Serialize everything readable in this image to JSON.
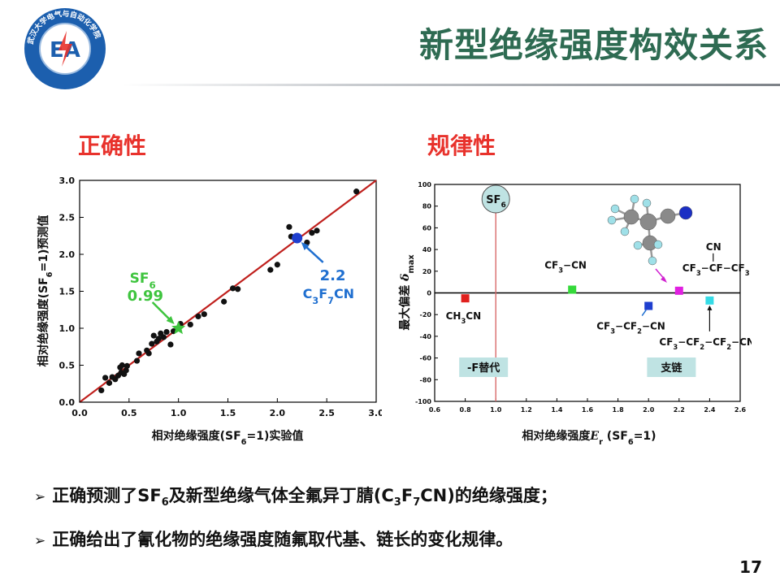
{
  "title": "新型绝缘强度构效关系",
  "logo": {
    "ring_text": "武汉大学电气与自动化学院",
    "letters": "EA",
    "colors": {
      "ring": "#1c5fae",
      "inner": "#ffffff",
      "bolt": "#e8322c"
    }
  },
  "sections": {
    "left": "正确性",
    "right": "规律性"
  },
  "chart_data": [
    {
      "type": "scatter",
      "xlabel": "相对绝缘强度(SF6=1)实验值",
      "ylabel": "相对绝缘强度(SF6=1)预测值",
      "xlim": [
        0,
        3.0
      ],
      "ylim": [
        0,
        3.0
      ],
      "x_ticks": [
        "0.0",
        "0.5",
        "1.0",
        "1.5",
        "2.0",
        "2.5",
        "3.0"
      ],
      "y_ticks": [
        "0.0",
        "0.5",
        "1.0",
        "1.5",
        "2.0",
        "2.5",
        "3.0"
      ],
      "fit_line": {
        "from": [
          0,
          0
        ],
        "to": [
          3.0,
          3.0
        ],
        "color": "#c0201d"
      },
      "points": [
        [
          0.22,
          0.16
        ],
        [
          0.26,
          0.33
        ],
        [
          0.3,
          0.26
        ],
        [
          0.33,
          0.34
        ],
        [
          0.36,
          0.31
        ],
        [
          0.39,
          0.36
        ],
        [
          0.41,
          0.47
        ],
        [
          0.42,
          0.4
        ],
        [
          0.43,
          0.5
        ],
        [
          0.45,
          0.38
        ],
        [
          0.47,
          0.43
        ],
        [
          0.48,
          0.49
        ],
        [
          0.58,
          0.56
        ],
        [
          0.6,
          0.66
        ],
        [
          0.68,
          0.7
        ],
        [
          0.7,
          0.66
        ],
        [
          0.73,
          0.79
        ],
        [
          0.75,
          0.9
        ],
        [
          0.78,
          0.82
        ],
        [
          0.8,
          0.86
        ],
        [
          0.82,
          0.93
        ],
        [
          0.85,
          0.88
        ],
        [
          0.88,
          0.95
        ],
        [
          0.92,
          0.78
        ],
        [
          0.95,
          0.96
        ],
        [
          1.02,
          1.06
        ],
        [
          1.12,
          1.05
        ],
        [
          1.2,
          1.16
        ],
        [
          1.26,
          1.19
        ],
        [
          1.46,
          1.36
        ],
        [
          1.55,
          1.54
        ],
        [
          1.6,
          1.53
        ],
        [
          1.93,
          1.79
        ],
        [
          2.0,
          1.86
        ],
        [
          2.12,
          2.37
        ],
        [
          2.14,
          2.24
        ],
        [
          2.3,
          2.16
        ],
        [
          2.35,
          2.29
        ],
        [
          2.4,
          2.32
        ],
        [
          2.8,
          2.85
        ]
      ],
      "highlights": [
        {
          "name": "SF6",
          "label": "SF6",
          "value_label": "0.99",
          "x": 1.0,
          "y": 1.0,
          "marker": "star",
          "color": "#3ec43e"
        },
        {
          "name": "C3F7CN",
          "label": "C3F7CN",
          "value_label": "2.2",
          "x": 2.2,
          "y": 2.22,
          "marker": "circle",
          "color": "#1f3fcf"
        }
      ]
    },
    {
      "type": "scatter",
      "xlabel": "相对绝缘强度Er (SF6=1)",
      "ylabel": "最大偏差 δmax",
      "xlim": [
        0.6,
        2.6
      ],
      "ylim": [
        -100,
        100
      ],
      "x_ticks": [
        "0.6",
        "0.8",
        "1.0",
        "1.2",
        "1.4",
        "1.6",
        "1.8",
        "2.0",
        "2.2",
        "2.4",
        "2.6"
      ],
      "y_ticks": [
        "100",
        "80",
        "60",
        "40",
        "20",
        "0",
        "-20",
        "-40",
        "-60",
        "-80",
        "-100"
      ],
      "reference": {
        "label": "SF6",
        "x": 1.0
      },
      "points": [
        {
          "label": "CH3CN",
          "x": 0.8,
          "y": -5,
          "color": "#e0201d"
        },
        {
          "label": "CF3−CN",
          "x": 1.5,
          "y": 3,
          "color": "#35d93a"
        },
        {
          "label": "CF3−CF2−CN",
          "x": 2.0,
          "y": -12,
          "color": "#1f3fcf"
        },
        {
          "label": "CN / CF3−CF−CF3",
          "x": 2.2,
          "y": 2,
          "color": "#e020e0"
        },
        {
          "label": "CF3−CF2−CF2−CN",
          "x": 2.4,
          "y": -7,
          "color": "#35dbe6"
        }
      ],
      "group_labels": [
        "-F替代",
        "支链"
      ]
    }
  ],
  "bullets": [
    {
      "prefix": "正确预测了",
      "formula1": "SF6",
      "middle": "及新型绝缘气体全氟异丁腈",
      "formula2": "(C3F7CN)",
      "suffix": "的绝缘强度；"
    },
    {
      "text": "正确给出了氰化物的绝缘强度随氟取代基、链长的变化规律。"
    }
  ],
  "page_number": "17"
}
